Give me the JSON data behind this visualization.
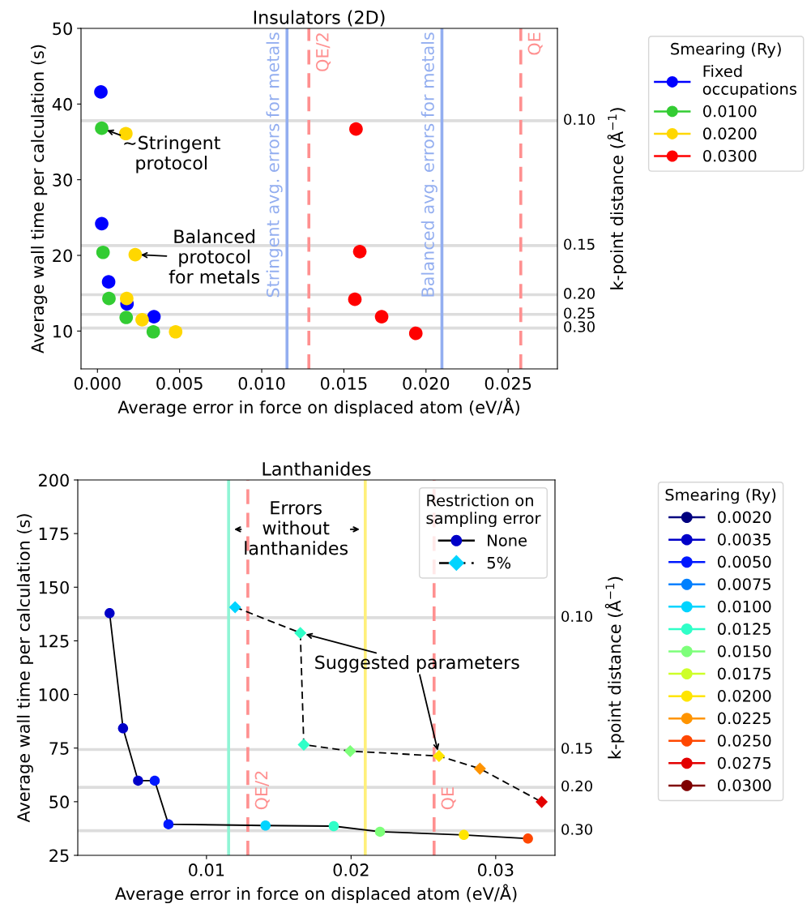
{
  "chart_data": [
    {
      "type": "scatter",
      "title": "Insulators (2D)",
      "xlabel": "Average error in force on displaced atom (eV/Å)",
      "ylabel": "Average wall time per calculation (s)",
      "y2label": "k-point distance (Å$^{−1}$)",
      "xlim": [
        -0.001,
        0.028
      ],
      "xticks": [
        {
          "value": 0,
          "label": "0.000"
        },
        {
          "value": 0.005,
          "label": "0.005"
        },
        {
          "value": 0.01,
          "label": "0.010"
        },
        {
          "value": 0.015,
          "label": "0.015"
        },
        {
          "value": 0.02,
          "label": "0.020"
        },
        {
          "value": 0.025,
          "label": "0.025"
        }
      ],
      "ylim": [
        5,
        50
      ],
      "yticks": [
        10,
        20,
        30,
        40,
        50
      ],
      "marker": "circle",
      "legend": "right",
      "legend_title": "Smearing (Ry)",
      "series": [
        {
          "name": "Fixed\noccupations",
          "color": "#0000ff",
          "x": [
            0.00021,
            0.00026,
            0.00068,
            0.0018,
            0.00344
          ],
          "values": [
            41.6,
            24.2,
            16.5,
            13.6,
            11.9
          ]
        },
        {
          "name": "0.0100",
          "color": "#33cc33",
          "x": [
            0.00026,
            0.00034,
            0.0007,
            0.00175,
            0.0034
          ],
          "values": [
            36.8,
            20.4,
            14.3,
            11.8,
            9.9
          ]
        },
        {
          "name": "0.0200",
          "color": "#ffd700",
          "x": [
            0.00173,
            0.0023,
            0.00178,
            0.00272,
            0.00476
          ],
          "values": [
            36.1,
            20.1,
            14.3,
            11.5,
            9.9
          ]
        },
        {
          "name": "0.0300",
          "color": "#ff0000",
          "x": [
            0.01574,
            0.01597,
            0.01567,
            0.0173,
            0.01938
          ],
          "values": [
            36.7,
            20.5,
            14.2,
            11.9,
            9.7
          ]
        }
      ],
      "ref_lines": [
        {
          "axis": "x",
          "value": 0.01154,
          "label": "Stringent avg. errors for metals",
          "color": "#93aef0",
          "line_style": "solid"
        },
        {
          "axis": "x",
          "value": 0.01287,
          "label": "QE/2",
          "color": "#ff9090",
          "line_style": "dashed"
        },
        {
          "axis": "x",
          "value": 0.02097,
          "label": "Balanced avg. errors for metals",
          "color": "#93aef0",
          "line_style": "solid"
        },
        {
          "axis": "x",
          "value": 0.02577,
          "label": "QE",
          "color": "#ff9090",
          "line_style": "dashed"
        },
        {
          "axis": "y",
          "value": 37.8,
          "color": "#dddddd",
          "line_style": "solid"
        },
        {
          "axis": "y",
          "value": 21.3,
          "color": "#dddddd",
          "line_style": "solid"
        },
        {
          "axis": "y",
          "value": 14.8,
          "color": "#dddddd",
          "line_style": "solid"
        },
        {
          "axis": "y",
          "value": 12.2,
          "color": "#dddddd",
          "line_style": "solid"
        },
        {
          "axis": "y",
          "value": 10.4,
          "color": "#dddddd",
          "line_style": "solid"
        }
      ],
      "annotations": [
        {
          "text": "∼Stringent\nprotocol",
          "x": 0.00026,
          "y": 36.8
        },
        {
          "text": "Balanced\nprotocol\nfor metals",
          "x": 0.0023,
          "y": 20.1
        },
        "0.10",
        "0.15",
        "0.20",
        "0.25",
        "0.30"
      ]
    },
    {
      "type": "line",
      "title": "Lanthanides",
      "xlabel": "Average error in force on displaced atom (eV/Å)",
      "ylabel": "Average wall time per calculation (s)",
      "y2label": "k-point distance (Å$^{−1}$)",
      "xlim": [
        0.0011,
        0.0341
      ],
      "xticks": [
        0.01,
        0.02,
        0.03
      ],
      "ylim": [
        25,
        200
      ],
      "yticks": [
        25,
        50,
        75,
        100,
        125,
        150,
        175,
        200
      ],
      "legend": [
        "top right",
        "right"
      ],
      "legend_title": [
        "Restriction on\nsampling error",
        "Smearing (Ry)"
      ],
      "series": [
        {
          "name": "None",
          "color": "#000000",
          "marker": "circle",
          "line_style": "solid",
          "x": [
            0.0033,
            0.00423,
            0.00527,
            0.00642,
            0.00737,
            0.01408,
            0.0188,
            0.022,
            0.0278,
            0.03223
          ],
          "values": [
            137.9,
            84.2,
            59.8,
            59.8,
            39.5,
            38.9,
            38.6,
            36.0,
            34.5,
            32.8
          ],
          "colors": [
            "#0000c8",
            "#0000c8",
            "#0000c8",
            "#0018ff",
            "#0018ff",
            "#00d4ff",
            "#2fffc8",
            "#7dff7a",
            "#ffe500",
            "#ff4700"
          ]
        },
        {
          "name": "5%",
          "color": "#000000",
          "marker": "diamond",
          "line_style": "dashed",
          "x": [
            0.01198,
            0.01649,
            0.01673,
            0.01994,
            0.02608,
            0.02891,
            0.03318
          ],
          "values": [
            140.7,
            128.7,
            76.6,
            73.6,
            71.3,
            65.4,
            49.9
          ],
          "colors": [
            "#00d4ff",
            "#2fffc8",
            "#2fffc8",
            "#7dff7a",
            "#ffe500",
            "#ff9400",
            "#e30000"
          ]
        },
        {
          "name": "0.0020",
          "color": "#00007f",
          "marker": "circle"
        },
        {
          "name": "0.0035",
          "color": "#0000c8",
          "marker": "circle"
        },
        {
          "name": "0.0050",
          "color": "#0018ff",
          "marker": "circle"
        },
        {
          "name": "0.0075",
          "color": "#0080ff",
          "marker": "circle"
        },
        {
          "name": "0.0100",
          "color": "#00d4ff",
          "marker": "circle"
        },
        {
          "name": "0.0125",
          "color": "#2fffc8",
          "marker": "circle"
        },
        {
          "name": "0.0150",
          "color": "#7dff7a",
          "marker": "circle"
        },
        {
          "name": "0.0175",
          "color": "#ceff29",
          "marker": "circle"
        },
        {
          "name": "0.0200",
          "color": "#ffe500",
          "marker": "circle"
        },
        {
          "name": "0.0225",
          "color": "#ff9400",
          "marker": "circle"
        },
        {
          "name": "0.0250",
          "color": "#ff4700",
          "marker": "circle"
        },
        {
          "name": "0.0275",
          "color": "#e30000",
          "marker": "circle"
        },
        {
          "name": "0.0300",
          "color": "#7f0000",
          "marker": "circle"
        }
      ],
      "ref_lines": [
        {
          "axis": "x",
          "value": 0.01153,
          "color": "#8ff5d5",
          "line_style": "solid"
        },
        {
          "axis": "x",
          "value": 0.01286,
          "label": "QE/2",
          "color": "#ff9090",
          "line_style": "dashed"
        },
        {
          "axis": "x",
          "value": 0.02098,
          "color": "#fff07a",
          "line_style": "solid"
        },
        {
          "axis": "x",
          "value": 0.02574,
          "label": "QE",
          "color": "#ff9090",
          "line_style": "dashed"
        },
        {
          "axis": "y",
          "value": 135.8,
          "color": "#dddddd",
          "line_style": "solid"
        },
        {
          "axis": "y",
          "value": 74.3,
          "color": "#dddddd",
          "line_style": "solid"
        },
        {
          "axis": "y",
          "value": 56.7,
          "color": "#dddddd",
          "line_style": "solid"
        },
        {
          "axis": "y",
          "value": 36.5,
          "color": "#dddddd",
          "line_style": "solid"
        }
      ],
      "annotations": [
        {
          "text": "Errors\nwithout\nlanthanides",
          "x": 0.01153,
          "y": 177
        },
        {
          "text": "Suggested parameters",
          "x": 0.01649,
          "y": 128.7
        },
        "0.10",
        "0.15",
        "0.20",
        "0.30"
      ]
    }
  ]
}
